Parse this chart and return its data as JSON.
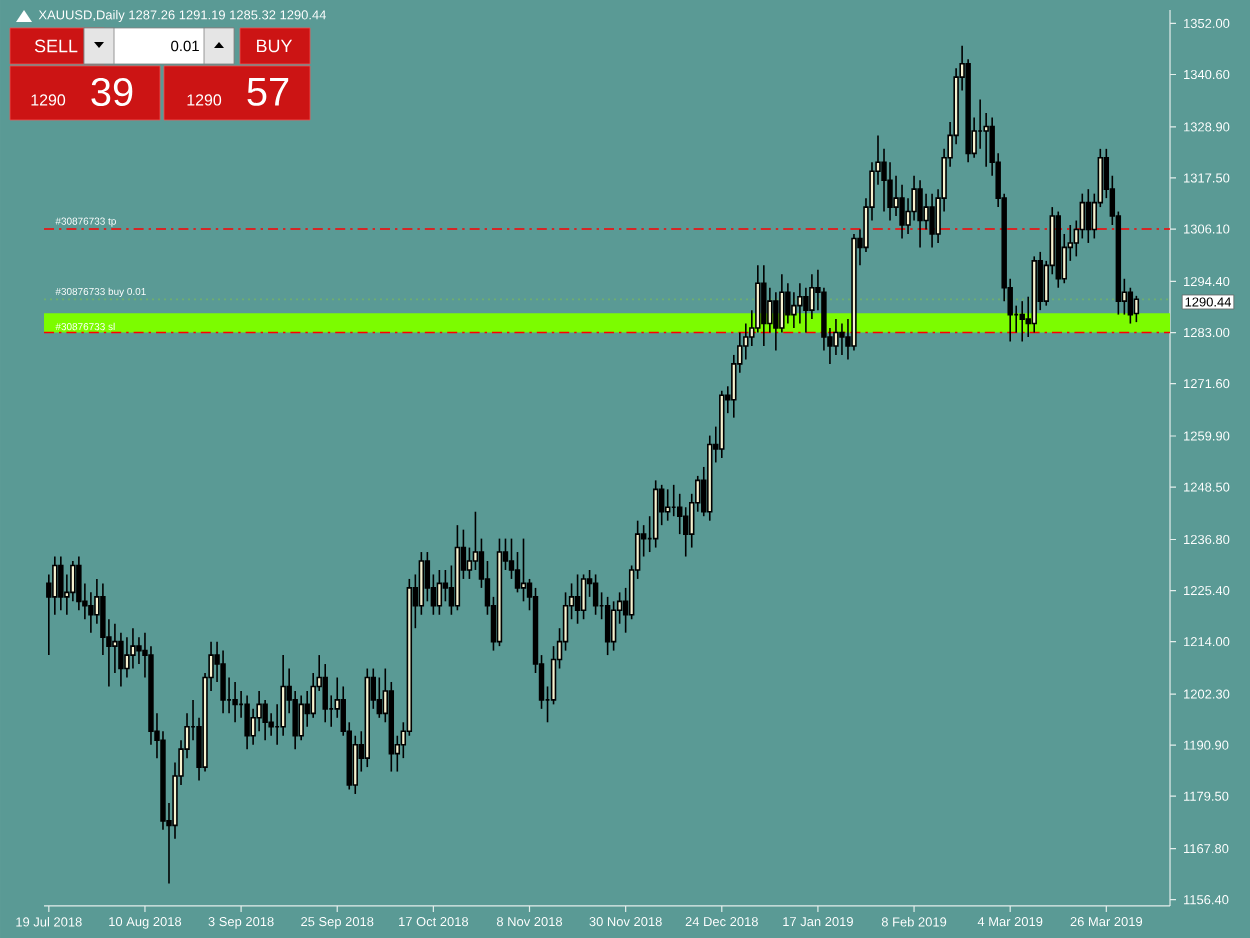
{
  "chart_data": {
    "type": "candlestick",
    "title": "XAUUSD,Daily  1287.26 1291.19 1285.32 1290.44",
    "annotations": [
      "SELL",
      "0.01",
      "BUY",
      "1290",
      "39",
      "1290",
      "57",
      "1290.44"
    ],
    "bands": [
      {
        "axis": "y",
        "from": 1283.0,
        "to": 1287.3,
        "color": "#7cfc00"
      }
    ],
    "categories": [
      "19 Jul 2018",
      null,
      null,
      null,
      null,
      null,
      null,
      null,
      null,
      null,
      null,
      null,
      null,
      null,
      null,
      null,
      "10 Aug 2018",
      null,
      null,
      null,
      null,
      null,
      null,
      null,
      null,
      null,
      null,
      null,
      null,
      null,
      null,
      null,
      "3 Sep 2018",
      null,
      null,
      null,
      null,
      null,
      null,
      null,
      null,
      null,
      null,
      null,
      null,
      null,
      null,
      null,
      "25 Sep 2018",
      null,
      null,
      null,
      null,
      null,
      null,
      null,
      null,
      null,
      null,
      null,
      null,
      null,
      null,
      null,
      "17 Oct 2018",
      null,
      null,
      null,
      null,
      null,
      null,
      null,
      null,
      null,
      null,
      null,
      null,
      null,
      null,
      null,
      "8 Nov 2018",
      null,
      null,
      null,
      null,
      null,
      null,
      null,
      null,
      null,
      null,
      null,
      null,
      null,
      null,
      null,
      "30 Nov 2018",
      null,
      null,
      null,
      null,
      null,
      null,
      null,
      null,
      null,
      null,
      null,
      null,
      null,
      null,
      null,
      "24 Dec 2018",
      null,
      null,
      null,
      null,
      null,
      null,
      null,
      null,
      null,
      null,
      null,
      null,
      null,
      null,
      null,
      "17 Jan 2019",
      null,
      null,
      null,
      null,
      null,
      null,
      null,
      null,
      null,
      null,
      null,
      null,
      null,
      null,
      null,
      "8 Feb 2019",
      null,
      null,
      null,
      null,
      null,
      null,
      null,
      null,
      null,
      null,
      null,
      null,
      null,
      null,
      null,
      "4 Mar 2019",
      null,
      null,
      null,
      null,
      null,
      null,
      null,
      null,
      null,
      null,
      null,
      null,
      null,
      null,
      null,
      "26 Mar 2019",
      null,
      null,
      null,
      null,
      null
    ],
    "ohlc": [
      [
        1227,
        1229,
        1211,
        1224
      ],
      [
        1224,
        1233,
        1220,
        1231
      ],
      [
        1231,
        1233,
        1221,
        1224
      ],
      [
        1224,
        1229,
        1220,
        1225
      ],
      [
        1225,
        1232,
        1223,
        1231
      ],
      [
        1231,
        1233,
        1221,
        1223
      ],
      [
        1223,
        1227,
        1219,
        1222
      ],
      [
        1222,
        1225,
        1216,
        1220
      ],
      [
        1220,
        1228,
        1218,
        1224
      ],
      [
        1224,
        1227,
        1211,
        1215
      ],
      [
        1215,
        1219,
        1204,
        1213
      ],
      [
        1213,
        1218,
        1207,
        1214
      ],
      [
        1214,
        1216,
        1204,
        1208
      ],
      [
        1208,
        1215,
        1206,
        1211
      ],
      [
        1211,
        1217,
        1208,
        1213
      ],
      [
        1213,
        1215,
        1209,
        1212
      ],
      [
        1212,
        1216,
        1206,
        1211
      ],
      [
        1211,
        1213,
        1191,
        1194
      ],
      [
        1194,
        1198,
        1188,
        1192
      ],
      [
        1192,
        1194,
        1172,
        1174
      ],
      [
        1174,
        1178,
        1160,
        1173
      ],
      [
        1173,
        1187,
        1170,
        1184
      ],
      [
        1184,
        1192,
        1182,
        1190
      ],
      [
        1190,
        1198,
        1188,
        1195
      ],
      [
        1195,
        1201,
        1192,
        1195
      ],
      [
        1195,
        1197,
        1183,
        1186
      ],
      [
        1186,
        1207,
        1185,
        1206
      ],
      [
        1206,
        1214,
        1203,
        1211
      ],
      [
        1211,
        1214,
        1205,
        1209
      ],
      [
        1209,
        1212,
        1198,
        1201
      ],
      [
        1201,
        1206,
        1198,
        1201
      ],
      [
        1201,
        1205,
        1196,
        1200
      ],
      [
        1200,
        1203,
        1197,
        1200
      ],
      [
        1200,
        1202,
        1190,
        1193
      ],
      [
        1193,
        1199,
        1191,
        1197
      ],
      [
        1197,
        1203,
        1194,
        1200
      ],
      [
        1200,
        1201,
        1192,
        1196
      ],
      [
        1196,
        1198,
        1193,
        1195
      ],
      [
        1195,
        1200,
        1191,
        1195
      ],
      [
        1195,
        1211,
        1193,
        1204
      ],
      [
        1204,
        1208,
        1198,
        1201
      ],
      [
        1201,
        1203,
        1190,
        1193
      ],
      [
        1193,
        1202,
        1192,
        1200
      ],
      [
        1200,
        1203,
        1195,
        1198
      ],
      [
        1198,
        1207,
        1197,
        1204
      ],
      [
        1204,
        1211,
        1203,
        1206
      ],
      [
        1206,
        1209,
        1196,
        1199
      ],
      [
        1199,
        1202,
        1195,
        1199
      ],
      [
        1199,
        1206,
        1197,
        1201
      ],
      [
        1201,
        1204,
        1193,
        1194
      ],
      [
        1194,
        1196,
        1181,
        1182
      ],
      [
        1182,
        1193,
        1180,
        1191
      ],
      [
        1191,
        1194,
        1185,
        1188
      ],
      [
        1188,
        1208,
        1186,
        1206
      ],
      [
        1206,
        1208,
        1199,
        1201
      ],
      [
        1201,
        1206,
        1197,
        1198
      ],
      [
        1198,
        1208,
        1196,
        1203
      ],
      [
        1203,
        1205,
        1185,
        1189
      ],
      [
        1189,
        1193,
        1185,
        1191
      ],
      [
        1191,
        1196,
        1188,
        1194
      ],
      [
        1194,
        1228,
        1193,
        1226
      ],
      [
        1226,
        1229,
        1217,
        1222
      ],
      [
        1222,
        1234,
        1220,
        1232
      ],
      [
        1232,
        1234,
        1223,
        1226
      ],
      [
        1226,
        1229,
        1220,
        1222
      ],
      [
        1222,
        1230,
        1220,
        1227
      ],
      [
        1227,
        1230,
        1223,
        1226
      ],
      [
        1226,
        1231,
        1220,
        1222
      ],
      [
        1222,
        1240,
        1221,
        1235
      ],
      [
        1235,
        1239,
        1228,
        1230
      ],
      [
        1230,
        1235,
        1228,
        1232
      ],
      [
        1232,
        1243,
        1230,
        1234
      ],
      [
        1234,
        1237,
        1226,
        1228
      ],
      [
        1228,
        1232,
        1220,
        1222
      ],
      [
        1222,
        1224,
        1212,
        1214
      ],
      [
        1214,
        1237,
        1213,
        1234
      ],
      [
        1234,
        1237,
        1230,
        1232
      ],
      [
        1232,
        1237,
        1228,
        1230
      ],
      [
        1230,
        1234,
        1225,
        1226
      ],
      [
        1226,
        1237,
        1223,
        1227
      ],
      [
        1227,
        1228,
        1221,
        1224
      ],
      [
        1224,
        1226,
        1207,
        1209
      ],
      [
        1209,
        1211,
        1199,
        1201
      ],
      [
        1201,
        1204,
        1196,
        1201
      ],
      [
        1201,
        1213,
        1200,
        1210
      ],
      [
        1210,
        1217,
        1208,
        1214
      ],
      [
        1214,
        1225,
        1212,
        1222
      ],
      [
        1222,
        1227,
        1219,
        1224
      ],
      [
        1224,
        1229,
        1218,
        1221
      ],
      [
        1221,
        1229,
        1219,
        1228
      ],
      [
        1228,
        1230,
        1224,
        1227
      ],
      [
        1227,
        1229,
        1220,
        1222
      ],
      [
        1222,
        1225,
        1219,
        1222
      ],
      [
        1222,
        1224,
        1211,
        1214
      ],
      [
        1214,
        1223,
        1212,
        1221
      ],
      [
        1221,
        1225,
        1218,
        1223
      ],
      [
        1223,
        1226,
        1216,
        1220
      ],
      [
        1220,
        1231,
        1219,
        1230
      ],
      [
        1230,
        1241,
        1228,
        1238
      ],
      [
        1238,
        1240,
        1233,
        1237
      ],
      [
        1237,
        1242,
        1234,
        1237
      ],
      [
        1237,
        1250,
        1235,
        1248
      ],
      [
        1248,
        1249,
        1240,
        1243
      ],
      [
        1243,
        1248,
        1241,
        1244
      ],
      [
        1244,
        1249,
        1242,
        1244
      ],
      [
        1244,
        1247,
        1238,
        1242
      ],
      [
        1242,
        1244,
        1233,
        1238
      ],
      [
        1238,
        1247,
        1235,
        1245
      ],
      [
        1245,
        1251,
        1243,
        1250
      ],
      [
        1250,
        1253,
        1242,
        1243
      ],
      [
        1243,
        1260,
        1241,
        1258
      ],
      [
        1258,
        1262,
        1254,
        1257
      ],
      [
        1257,
        1270,
        1255,
        1269
      ],
      [
        1269,
        1271,
        1265,
        1268
      ],
      [
        1268,
        1278,
        1264,
        1276
      ],
      [
        1276,
        1283,
        1274,
        1280
      ],
      [
        1280,
        1285,
        1277,
        1282
      ],
      [
        1282,
        1288,
        1280,
        1284
      ],
      [
        1284,
        1298,
        1283,
        1294
      ],
      [
        1294,
        1298,
        1280,
        1285
      ],
      [
        1285,
        1293,
        1283,
        1290
      ],
      [
        1290,
        1292,
        1279,
        1284
      ],
      [
        1284,
        1296,
        1283,
        1292
      ],
      [
        1292,
        1294,
        1285,
        1287
      ],
      [
        1287,
        1292,
        1284,
        1289
      ],
      [
        1289,
        1294,
        1285,
        1291
      ],
      [
        1291,
        1293,
        1283,
        1288
      ],
      [
        1288,
        1296,
        1286,
        1293
      ],
      [
        1293,
        1297,
        1288,
        1292
      ],
      [
        1292,
        1293,
        1279,
        1282
      ],
      [
        1282,
        1284,
        1276,
        1280
      ],
      [
        1280,
        1286,
        1278,
        1283
      ],
      [
        1283,
        1285,
        1278,
        1282
      ],
      [
        1282,
        1286,
        1277,
        1280
      ],
      [
        1280,
        1305,
        1279,
        1304
      ],
      [
        1304,
        1306,
        1298,
        1302
      ],
      [
        1302,
        1313,
        1301,
        1311
      ],
      [
        1311,
        1321,
        1308,
        1319
      ],
      [
        1319,
        1327,
        1316,
        1321
      ],
      [
        1321,
        1324,
        1310,
        1317
      ],
      [
        1317,
        1321,
        1308,
        1311
      ],
      [
        1311,
        1318,
        1309,
        1313
      ],
      [
        1313,
        1316,
        1304,
        1307
      ],
      [
        1307,
        1313,
        1305,
        1310
      ],
      [
        1310,
        1318,
        1308,
        1315
      ],
      [
        1315,
        1317,
        1302,
        1308
      ],
      [
        1308,
        1314,
        1306,
        1311
      ],
      [
        1311,
        1314,
        1302,
        1305
      ],
      [
        1305,
        1315,
        1303,
        1313
      ],
      [
        1313,
        1324,
        1310,
        1322
      ],
      [
        1322,
        1330,
        1320,
        1327
      ],
      [
        1327,
        1342,
        1325,
        1340
      ],
      [
        1340,
        1347,
        1337,
        1343
      ],
      [
        1343,
        1344,
        1321,
        1323
      ],
      [
        1323,
        1331,
        1322,
        1328
      ],
      [
        1328,
        1335,
        1324,
        1328
      ],
      [
        1328,
        1332,
        1320,
        1329
      ],
      [
        1329,
        1331,
        1318,
        1321
      ],
      [
        1321,
        1323,
        1311,
        1313
      ],
      [
        1313,
        1314,
        1290,
        1293
      ],
      [
        1293,
        1295,
        1281,
        1287
      ],
      [
        1287,
        1289,
        1283,
        1287
      ],
      [
        1287,
        1290,
        1281,
        1286
      ],
      [
        1286,
        1291,
        1282,
        1285
      ],
      [
        1285,
        1300,
        1283,
        1299
      ],
      [
        1299,
        1301,
        1288,
        1290
      ],
      [
        1290,
        1299,
        1289,
        1298
      ],
      [
        1298,
        1311,
        1296,
        1309
      ],
      [
        1309,
        1310,
        1293,
        1295
      ],
      [
        1295,
        1305,
        1294,
        1302
      ],
      [
        1302,
        1307,
        1299,
        1303
      ],
      [
        1303,
        1308,
        1300,
        1306
      ],
      [
        1306,
        1314,
        1304,
        1312
      ],
      [
        1312,
        1315,
        1303,
        1306
      ],
      [
        1306,
        1314,
        1304,
        1312
      ],
      [
        1312,
        1324,
        1311,
        1322
      ],
      [
        1322,
        1324,
        1313,
        1315
      ],
      [
        1315,
        1318,
        1307,
        1309
      ],
      [
        1309,
        1310,
        1287,
        1290
      ],
      [
        1290,
        1295,
        1287,
        1292
      ],
      [
        1292,
        1293,
        1285,
        1287
      ],
      [
        1287.26,
        1291.19,
        1285.32,
        1290.44
      ]
    ],
    "ref_lines": [
      {
        "axis": "y",
        "value": 1306.1,
        "label": "#30876733 tp",
        "color": "#ff0000",
        "line_style": "dashed"
      },
      {
        "axis": "y",
        "value": 1290.4,
        "label": "#30876733 buy 0.01",
        "color": "#6fae6f",
        "line_style": "dotted"
      },
      {
        "axis": "y",
        "value": 1283.0,
        "label": "#30876733 sl",
        "color": "#ff0000",
        "line_style": "dashed"
      }
    ],
    "ylim": [
      1155.0,
      1355.0
    ],
    "yticks": [
      {
        "value": 1156.4,
        "label": "1156.40"
      },
      {
        "value": 1167.8,
        "label": "1167.80"
      },
      {
        "value": 1179.5,
        "label": "1179.50"
      },
      {
        "value": 1190.9,
        "label": "1190.90"
      },
      {
        "value": 1202.3,
        "label": "1202.30"
      },
      {
        "value": 1214.0,
        "label": "1214.00"
      },
      {
        "value": 1225.4,
        "label": "1225.40"
      },
      {
        "value": 1236.8,
        "label": "1236.80"
      },
      {
        "value": 1248.5,
        "label": "1248.50"
      },
      {
        "value": 1259.9,
        "label": "1259.90"
      },
      {
        "value": 1271.6,
        "label": "1271.60"
      },
      {
        "value": 1283.0,
        "label": "1283.00"
      },
      {
        "value": 1294.4,
        "label": "1294.40"
      },
      {
        "value": 1306.1,
        "label": "1306.10"
      },
      {
        "value": 1317.5,
        "label": "1317.50"
      },
      {
        "value": 1328.9,
        "label": "1328.90"
      },
      {
        "value": 1340.6,
        "label": "1340.60"
      },
      {
        "value": 1352.0,
        "label": "1352.00"
      }
    ]
  }
}
